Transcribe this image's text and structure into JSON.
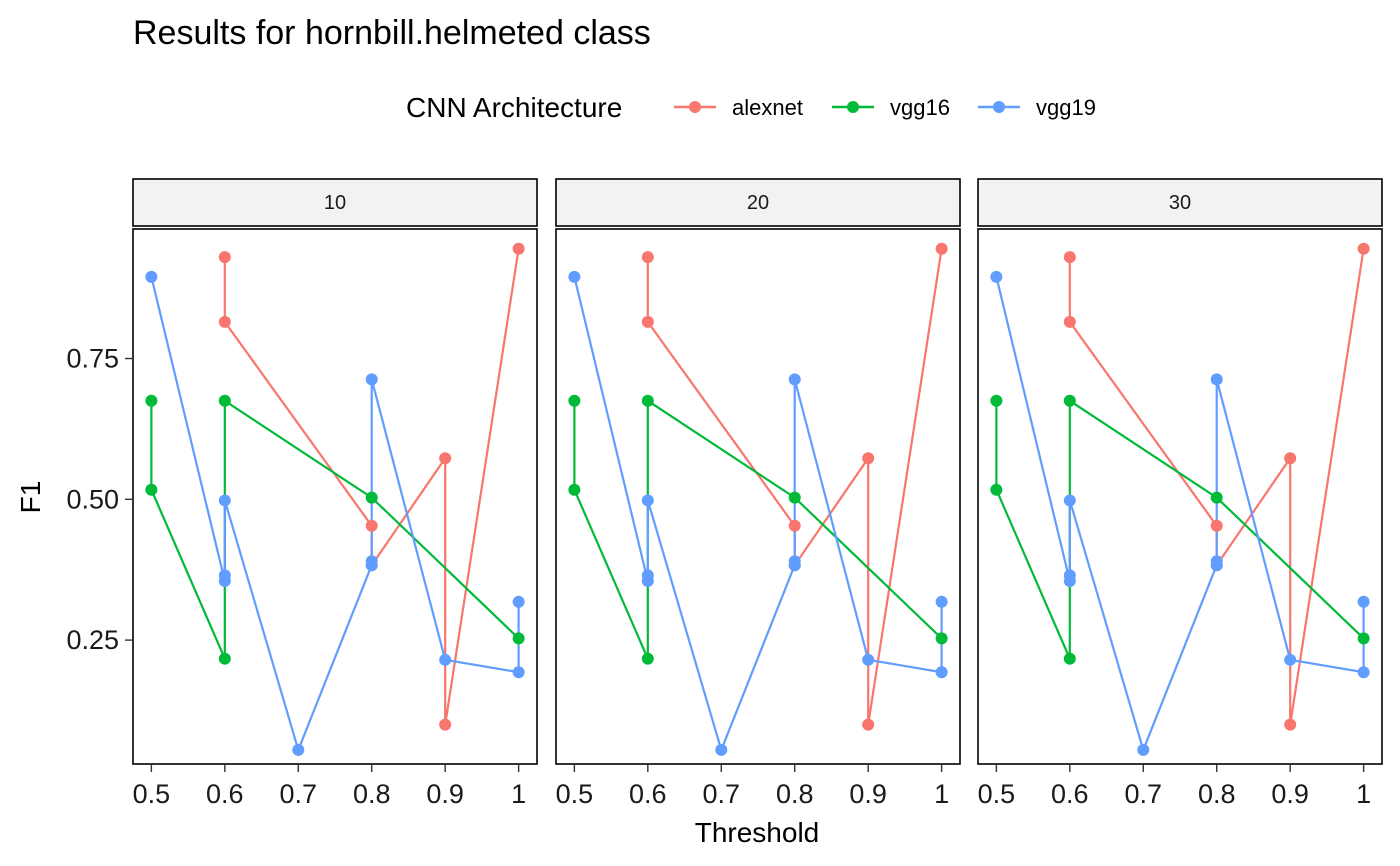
{
  "chart_data": {
    "type": "line",
    "title": "Results for hornbill.helmeted class",
    "xlabel": "Threshold",
    "ylabel": "F1",
    "legend_title": "CNN Architecture",
    "legend_position": "top",
    "facets": [
      "10",
      "20",
      "30"
    ],
    "x_ticks": [
      "0.5",
      "0.6",
      "0.7",
      "0.8",
      "0.9",
      "1"
    ],
    "y_ticks": [
      "0.25",
      "0.50",
      "0.75"
    ],
    "xlim": [
      0.475,
      1.025
    ],
    "ylim": [
      0.03,
      0.98
    ],
    "grid": false,
    "series": [
      {
        "name": "alexnet",
        "color": "#F8766D",
        "x": [
          0.6,
          0.6,
          0.8,
          0.8,
          0.9,
          0.9,
          1.0
        ],
        "y": [
          0.93,
          0.815,
          0.453,
          0.383,
          0.573,
          0.1,
          0.945
        ]
      },
      {
        "name": "vgg16",
        "color": "#00BA38",
        "x": [
          0.5,
          0.5,
          0.6,
          0.6,
          0.8,
          1.0
        ],
        "y": [
          0.675,
          0.517,
          0.217,
          0.675,
          0.503,
          0.253
        ]
      },
      {
        "name": "vgg19",
        "color": "#619CFF",
        "x": [
          0.5,
          0.6,
          0.6,
          0.6,
          0.7,
          0.8,
          0.8,
          0.8,
          0.9,
          1.0,
          1.0
        ],
        "y": [
          0.895,
          0.355,
          0.365,
          0.498,
          0.055,
          0.383,
          0.39,
          0.713,
          0.215,
          0.193,
          0.318
        ]
      }
    ]
  }
}
